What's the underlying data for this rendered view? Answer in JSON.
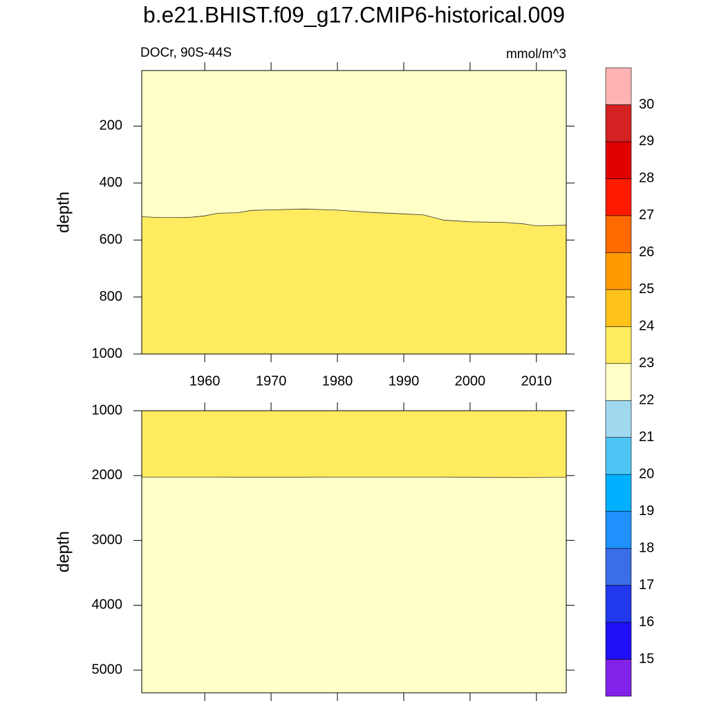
{
  "title": "b.e21.BHIST.f09_g17.CMIP6-historical.009",
  "chart_data": [
    {
      "type": "contour",
      "left_string": "DOCr, 90S-44S",
      "right_string": "mmol/m^3",
      "y_label": "depth",
      "xlim": [
        1950.5,
        2014.5
      ],
      "xticks": [
        1960,
        1970,
        1980,
        1990,
        2000,
        2010
      ],
      "ylim": [
        5,
        1000
      ],
      "yticks": [
        200,
        400,
        600,
        800,
        1000
      ],
      "y_reversed": true,
      "upper_color": "#ffffc8",
      "lower_color": "#ffeb5f",
      "line_color": "#333333",
      "x": [
        1950.5,
        1953,
        1956,
        1958,
        1960,
        1962,
        1965,
        1967,
        1970,
        1975,
        1980,
        1985,
        1990,
        1993,
        1996,
        2000,
        2005,
        2008,
        2010,
        2014.5
      ],
      "values": [
        518,
        521,
        521,
        520,
        515,
        506,
        504,
        496,
        494,
        491,
        495,
        503,
        508,
        512,
        530,
        536,
        538,
        543,
        550,
        548
      ]
    },
    {
      "type": "contour",
      "y_label": "depth",
      "xlim": [
        1950.5,
        2014.5
      ],
      "xticks": [
        1960,
        1970,
        1980,
        1990,
        2000,
        2010
      ],
      "ylim": [
        1000,
        5350
      ],
      "yticks": [
        1000,
        2000,
        3000,
        4000,
        5000
      ],
      "y_reversed": true,
      "upper_color": "#ffeb5f",
      "lower_color": "#ffffc8",
      "line_color": "#333333",
      "x": [
        1950.5,
        1960,
        1970,
        1980,
        1990,
        2000,
        2005,
        2008,
        2011,
        2014.5
      ],
      "values": [
        2025,
        2025,
        2026,
        2025,
        2025,
        2026,
        2030,
        2031,
        2028,
        2025
      ]
    }
  ],
  "colorbar": {
    "levels": [
      15,
      16,
      17,
      18,
      19,
      20,
      21,
      22,
      23,
      24,
      25,
      26,
      27,
      28,
      29,
      30
    ],
    "colors": [
      "#8022e8",
      "#2010f8",
      "#2238ee",
      "#3a6ee8",
      "#1e90ff",
      "#00b0ff",
      "#4ec4f5",
      "#a0d8f0",
      "#ffffc8",
      "#ffeb5f",
      "#ffc21a",
      "#ff9a00",
      "#ff6a00",
      "#ff1a00",
      "#e00000",
      "#d42222",
      "#ffb3b3"
    ]
  }
}
